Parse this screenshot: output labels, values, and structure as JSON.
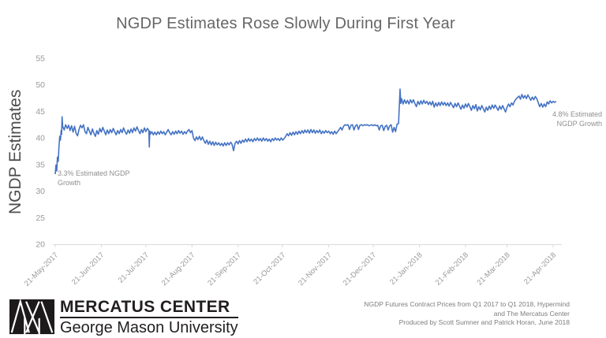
{
  "chart_data": {
    "type": "line",
    "title": "NGDP Estimates Rose Slowly During First Year",
    "ylabel": "NGDP Estimates",
    "xlabel": "",
    "ylim": [
      20,
      55
    ],
    "yticks": [
      20,
      25,
      30,
      35,
      40,
      45,
      50,
      55
    ],
    "x_tick_days": [
      0,
      31,
      61,
      92,
      123,
      153,
      184,
      214,
      245,
      276,
      304,
      335
    ],
    "x_tick_labels": [
      "21-May-2017",
      "21-Jun-2017",
      "21-Jul-2017",
      "21-Aug-2017",
      "21-Sep-2017",
      "21-Oct-2017",
      "21-Nov-2017",
      "21-Dec-2017",
      "21-Jan-2018",
      "21-Feb-2018",
      "21-Mar-2018",
      "21-Apr-2018"
    ],
    "x_domain_days": [
      0,
      337
    ],
    "grid": false,
    "legend": null,
    "line_color": "#4472c4",
    "axis_color": "#d9d9d9",
    "tick_label_color": "#999999",
    "annotations": [
      {
        "line1": "3.3% Estimated NGDP",
        "line2": "Growth"
      },
      {
        "line1": "4.8% Estimated",
        "line2": "NGDP Growth"
      }
    ],
    "points": [
      [
        0,
        33.2
      ],
      [
        0.5,
        34.9
      ],
      [
        1,
        33.8
      ],
      [
        1.5,
        36.4
      ],
      [
        2,
        35.6
      ],
      [
        2.5,
        38.3
      ],
      [
        3,
        40.3
      ],
      [
        3.5,
        39.6
      ],
      [
        4,
        41.4
      ],
      [
        4.3,
        40.7
      ],
      [
        4.6,
        44
      ],
      [
        5,
        42.2
      ],
      [
        6,
        41.5
      ],
      [
        7,
        42.5
      ],
      [
        8,
        41.8
      ],
      [
        9,
        42.4
      ],
      [
        10,
        41.4
      ],
      [
        11,
        42.3
      ],
      [
        12,
        41.1
      ],
      [
        13,
        42.2
      ],
      [
        14,
        40.9
      ],
      [
        15,
        40.4
      ],
      [
        16,
        41.6
      ],
      [
        17,
        42.4
      ],
      [
        18,
        41.9
      ],
      [
        19,
        42.5
      ],
      [
        20,
        41.2
      ],
      [
        21,
        40.8
      ],
      [
        22,
        42
      ],
      [
        23,
        41.3
      ],
      [
        24,
        40.6
      ],
      [
        25,
        41.7
      ],
      [
        26,
        40.9
      ],
      [
        27,
        40.3
      ],
      [
        28,
        41.4
      ],
      [
        29,
        40.7
      ],
      [
        30,
        41.8
      ],
      [
        31,
        41.1
      ],
      [
        32,
        42
      ],
      [
        33,
        41.3
      ],
      [
        34,
        40.6
      ],
      [
        35,
        41.5
      ],
      [
        36,
        40.8
      ],
      [
        37,
        41.6
      ],
      [
        38,
        41
      ],
      [
        39,
        41.8
      ],
      [
        40,
        41.2
      ],
      [
        41,
        40.6
      ],
      [
        42,
        41.4
      ],
      [
        43,
        40.8
      ],
      [
        44,
        41.6
      ],
      [
        45,
        41
      ],
      [
        46,
        41.9
      ],
      [
        47,
        41.2
      ],
      [
        48,
        40.7
      ],
      [
        49,
        41.5
      ],
      [
        50,
        40.9
      ],
      [
        51,
        41.7
      ],
      [
        52,
        41
      ],
      [
        53,
        41.9
      ],
      [
        54,
        41.3
      ],
      [
        55,
        42.1
      ],
      [
        56,
        41.4
      ],
      [
        57,
        40.8
      ],
      [
        58,
        41.6
      ],
      [
        59,
        41
      ],
      [
        60,
        41.9
      ],
      [
        61,
        41.2
      ],
      [
        62,
        41.8
      ],
      [
        63,
        41.4
      ],
      [
        63.3,
        38.3
      ],
      [
        63.6,
        41.3
      ],
      [
        64,
        40.7
      ],
      [
        65,
        41.2
      ],
      [
        66,
        40.6
      ],
      [
        67,
        41.1
      ],
      [
        68,
        40.6
      ],
      [
        69,
        41.2
      ],
      [
        70,
        40.7
      ],
      [
        71,
        41.3
      ],
      [
        72,
        40.8
      ],
      [
        73,
        41.2
      ],
      [
        74,
        40.6
      ],
      [
        75,
        41.1
      ],
      [
        76,
        41.6
      ],
      [
        77,
        41
      ],
      [
        78,
        40.6
      ],
      [
        79,
        41.2
      ],
      [
        80,
        40.7
      ],
      [
        81,
        41.3
      ],
      [
        82,
        40.8
      ],
      [
        83,
        41.4
      ],
      [
        84,
        40.9
      ],
      [
        85,
        41.3
      ],
      [
        86,
        40.7
      ],
      [
        87,
        41.2
      ],
      [
        88,
        40.8
      ],
      [
        89,
        41.3
      ],
      [
        90,
        41.6
      ],
      [
        91,
        41
      ],
      [
        92,
        41.4
      ],
      [
        93,
        40
      ],
      [
        94,
        39.5
      ],
      [
        95,
        40.2
      ],
      [
        96,
        39.7
      ],
      [
        97,
        40.3
      ],
      [
        98,
        39.6
      ],
      [
        99,
        40.2
      ],
      [
        100,
        39.5
      ],
      [
        101,
        39
      ],
      [
        102,
        39.6
      ],
      [
        103,
        38.8
      ],
      [
        104,
        39.4
      ],
      [
        105,
        38.7
      ],
      [
        106,
        39.3
      ],
      [
        107,
        38.6
      ],
      [
        108,
        39.2
      ],
      [
        109,
        38.7
      ],
      [
        110,
        39.1
      ],
      [
        111,
        38.6
      ],
      [
        112,
        39
      ],
      [
        113,
        38.5
      ],
      [
        114,
        39.1
      ],
      [
        115,
        38.6
      ],
      [
        116,
        39.1
      ],
      [
        117,
        38.7
      ],
      [
        118,
        39.2
      ],
      [
        119,
        38.8
      ],
      [
        120,
        37.6
      ],
      [
        121,
        39
      ],
      [
        122,
        39.4
      ],
      [
        123,
        38.9
      ],
      [
        124,
        39.5
      ],
      [
        125,
        39
      ],
      [
        126,
        39.6
      ],
      [
        127,
        39.2
      ],
      [
        128,
        39.8
      ],
      [
        129,
        39.3
      ],
      [
        130,
        39.9
      ],
      [
        131,
        39.4
      ],
      [
        132,
        39.8
      ],
      [
        133,
        39.3
      ],
      [
        134,
        39.9
      ],
      [
        135,
        39.5
      ],
      [
        136,
        40
      ],
      [
        137,
        39.5
      ],
      [
        138,
        39.9
      ],
      [
        139,
        39.4
      ],
      [
        140,
        40
      ],
      [
        141,
        39.5
      ],
      [
        142,
        39.9
      ],
      [
        143,
        39.4
      ],
      [
        144,
        39.8
      ],
      [
        145,
        39.3
      ],
      [
        146,
        39.9
      ],
      [
        147,
        39.5
      ],
      [
        148,
        40
      ],
      [
        149,
        39.6
      ],
      [
        150,
        39.9
      ],
      [
        151,
        39.5
      ],
      [
        152,
        40
      ],
      [
        153,
        39.6
      ],
      [
        154,
        39.9
      ],
      [
        155,
        40.3
      ],
      [
        156,
        40.8
      ],
      [
        157,
        40.4
      ],
      [
        158,
        41
      ],
      [
        159,
        40.5
      ],
      [
        160,
        41.1
      ],
      [
        161,
        40.6
      ],
      [
        162,
        41.2
      ],
      [
        163,
        40.7
      ],
      [
        164,
        41.3
      ],
      [
        165,
        40.8
      ],
      [
        166,
        41.4
      ],
      [
        167,
        40.9
      ],
      [
        168,
        41.5
      ],
      [
        169,
        41
      ],
      [
        170,
        41.5
      ],
      [
        171,
        40.9
      ],
      [
        172,
        41.6
      ],
      [
        173,
        41
      ],
      [
        174,
        41.5
      ],
      [
        175,
        40.9
      ],
      [
        176,
        41.4
      ],
      [
        177,
        41
      ],
      [
        178,
        41.5
      ],
      [
        179,
        40.8
      ],
      [
        180,
        41.3
      ],
      [
        181,
        40.9
      ],
      [
        182,
        41.4
      ],
      [
        183,
        41
      ],
      [
        184,
        41.3
      ],
      [
        185,
        40.8
      ],
      [
        186,
        41.2
      ],
      [
        187,
        40.7
      ],
      [
        188,
        41.3
      ],
      [
        189,
        40.8
      ],
      [
        190,
        41.2
      ],
      [
        191,
        41.6
      ],
      [
        192,
        42
      ],
      [
        193,
        41.5
      ],
      [
        194,
        42.2
      ],
      [
        195,
        42.5
      ],
      [
        196,
        42.4
      ],
      [
        197,
        42.5
      ],
      [
        198,
        41.6
      ],
      [
        199,
        42.4
      ],
      [
        200,
        42.5
      ],
      [
        201,
        41.5
      ],
      [
        202,
        42.3
      ],
      [
        203,
        42.5
      ],
      [
        204,
        41.6
      ],
      [
        205,
        42.4
      ],
      [
        206,
        42.5
      ],
      [
        207,
        42.3
      ],
      [
        208,
        42.5
      ],
      [
        209,
        42.4
      ],
      [
        210,
        42.5
      ],
      [
        211,
        42.3
      ],
      [
        212,
        42.4
      ],
      [
        213,
        42.5
      ],
      [
        214,
        42.3
      ],
      [
        215,
        42.5
      ],
      [
        216,
        42.3
      ],
      [
        217,
        42.4
      ],
      [
        218,
        41.5
      ],
      [
        219,
        42.3
      ],
      [
        220,
        42.4
      ],
      [
        221,
        41.4
      ],
      [
        222,
        42.2
      ],
      [
        223,
        42.4
      ],
      [
        224,
        41.5
      ],
      [
        225,
        42.3
      ],
      [
        226,
        42.5
      ],
      [
        227,
        41.1
      ],
      [
        228,
        42
      ],
      [
        229,
        41.2
      ],
      [
        230,
        42.6
      ],
      [
        231,
        42.7
      ],
      [
        232,
        49.2
      ],
      [
        232.5,
        46.5
      ],
      [
        233,
        47.4
      ],
      [
        234,
        46.4
      ],
      [
        235,
        47.2
      ],
      [
        236,
        46.5
      ],
      [
        237,
        47.1
      ],
      [
        238,
        46.4
      ],
      [
        239,
        47.2
      ],
      [
        240,
        46.6
      ],
      [
        241,
        47.2
      ],
      [
        242,
        46.5
      ],
      [
        243,
        45.9
      ],
      [
        244,
        46.9
      ],
      [
        245,
        46.3
      ],
      [
        246,
        47
      ],
      [
        247,
        46.4
      ],
      [
        248,
        47.1
      ],
      [
        249,
        46.5
      ],
      [
        250,
        46.9
      ],
      [
        251,
        46.3
      ],
      [
        252,
        46.8
      ],
      [
        253,
        46.2
      ],
      [
        254,
        46.9
      ],
      [
        255,
        45.8
      ],
      [
        256,
        46.6
      ],
      [
        257,
        46
      ],
      [
        258,
        46.7
      ],
      [
        259,
        46.1
      ],
      [
        260,
        46.8
      ],
      [
        261,
        46.2
      ],
      [
        262,
        46.7
      ],
      [
        263,
        46.1
      ],
      [
        264,
        46.6
      ],
      [
        265,
        46
      ],
      [
        266,
        46.7
      ],
      [
        267,
        46.2
      ],
      [
        268,
        45.7
      ],
      [
        269,
        46.5
      ],
      [
        270,
        45.9
      ],
      [
        271,
        46.6
      ],
      [
        272,
        46
      ],
      [
        273,
        45.4
      ],
      [
        274,
        46.2
      ],
      [
        275,
        45.6
      ],
      [
        276,
        46.4
      ],
      [
        277,
        45.8
      ],
      [
        278,
        46.5
      ],
      [
        279,
        45.9
      ],
      [
        280,
        45.2
      ],
      [
        281,
        46.1
      ],
      [
        282,
        45.5
      ],
      [
        283,
        46.3
      ],
      [
        284,
        45.1
      ],
      [
        285,
        45.9
      ],
      [
        286,
        45.3
      ],
      [
        287,
        46.1
      ],
      [
        288,
        45.5
      ],
      [
        289,
        44.9
      ],
      [
        290,
        45.8
      ],
      [
        291,
        45.2
      ],
      [
        292,
        46
      ],
      [
        293,
        45.4
      ],
      [
        294,
        46.2
      ],
      [
        295,
        45.6
      ],
      [
        296,
        46.2
      ],
      [
        297,
        45.7
      ],
      [
        298,
        45.2
      ],
      [
        299,
        46
      ],
      [
        300,
        45.4
      ],
      [
        301,
        46.1
      ],
      [
        302,
        45.5
      ],
      [
        303,
        44.9
      ],
      [
        304,
        45.8
      ],
      [
        305,
        46.4
      ],
      [
        306,
        45.9
      ],
      [
        307,
        46.6
      ],
      [
        308,
        46.2
      ],
      [
        309,
        46.9
      ],
      [
        310,
        47.3
      ],
      [
        311,
        47.6
      ],
      [
        312,
        47.9
      ],
      [
        313,
        47.3
      ],
      [
        314,
        48.2
      ],
      [
        315,
        47.5
      ],
      [
        316,
        48
      ],
      [
        317,
        47.4
      ],
      [
        318,
        48.1
      ],
      [
        319,
        47.6
      ],
      [
        320,
        47.1
      ],
      [
        321,
        47.7
      ],
      [
        322,
        47.2
      ],
      [
        323,
        47.8
      ],
      [
        324,
        47.4
      ],
      [
        325,
        46.6
      ],
      [
        326,
        45.9
      ],
      [
        327,
        46.5
      ],
      [
        328,
        45.8
      ],
      [
        329,
        46.4
      ],
      [
        330,
        45.9
      ],
      [
        331,
        46.8
      ],
      [
        332,
        46.4
      ],
      [
        333,
        47
      ],
      [
        334,
        46.6
      ],
      [
        335,
        46.9
      ],
      [
        336,
        46.7
      ],
      [
        337,
        46.9
      ]
    ]
  },
  "footer": {
    "logo": {
      "org": "MERCATUS CENTER",
      "university": "George Mason University"
    },
    "caption_lines": [
      "NGDP Futures Contract Prices from Q1 2017 to Q1 2018, Hypermind",
      "and The Mercatus Center",
      "Produced by Scott Sumner and Patrick Horan, June 2018"
    ]
  }
}
